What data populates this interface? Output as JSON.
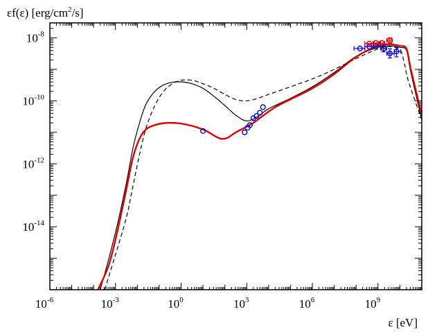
{
  "chart_data": {
    "type": "line",
    "ylabel_parts": [
      "εf(ε) [erg/cm",
      "2",
      "/s]"
    ],
    "xlabel": "ε [eV]",
    "x_scale": "log",
    "y_scale": "log",
    "xlim": [
      1e-06,
      100000000000.0
    ],
    "ylim": [
      1e-16,
      3e-08
    ],
    "x_ticks": [
      {
        "value": 1e-06,
        "base": "10",
        "exp": "-6"
      },
      {
        "value": 0.001,
        "base": "10",
        "exp": "-3"
      },
      {
        "value": 1,
        "base": "10",
        "exp": "0"
      },
      {
        "value": 1000.0,
        "base": "10",
        "exp": "3"
      },
      {
        "value": 1000000.0,
        "base": "10",
        "exp": "6"
      },
      {
        "value": 1000000000.0,
        "base": "10",
        "exp": "9"
      }
    ],
    "y_ticks": [
      {
        "value": 1e-08,
        "base": "10",
        "exp": "-8"
      },
      {
        "value": 1e-10,
        "base": "10",
        "exp": "-10"
      },
      {
        "value": 1e-12,
        "base": "10",
        "exp": "-12"
      },
      {
        "value": 1e-14,
        "base": "10",
        "exp": "-14"
      }
    ],
    "series": [
      {
        "style": "red-thick",
        "color": "#dd0000",
        "points": [
          [
            0.000158,
            1e-16
          ],
          [
            0.000501,
            6.3e-16
          ],
          [
            0.00126,
            8e-15
          ],
          [
            0.00316,
            1.6e-13
          ],
          [
            0.00631,
            1.6e-12
          ],
          [
            0.0126,
            6.3e-12
          ],
          [
            0.0251,
            1.26e-11
          ],
          [
            0.0631,
            1.7e-11
          ],
          [
            0.158,
            1.95e-11
          ],
          [
            0.398,
            2e-11
          ],
          [
            1,
            1.9e-11
          ],
          [
            3.16,
            1.6e-11
          ],
          [
            12.6,
            1.15e-11
          ],
          [
            31.6,
            7.9e-12
          ],
          [
            63.1,
            6.3e-12
          ],
          [
            126,
            6.6e-12
          ],
          [
            316,
            1e-11
          ],
          [
            794,
            1.4e-11
          ],
          [
            2000,
            2e-11
          ],
          [
            6310,
            3.6e-11
          ],
          [
            20000,
            6.3e-11
          ],
          [
            100000,
            1.12e-10
          ],
          [
            1000000,
            2.5e-10
          ],
          [
            10000000,
            7.1e-10
          ],
          [
            100000000,
            2.5e-09
          ],
          [
            1000000000.0,
            5.6e-09
          ],
          [
            3160000000.0,
            6.3e-09
          ],
          [
            10000000000.0,
            5.6e-09
          ],
          [
            20000000000.0,
            4.5e-09
          ],
          [
            31600000000.0,
            1e-09
          ],
          [
            100000000000.0,
            3.5e-11
          ]
        ]
      },
      {
        "style": "black-solid",
        "color": "#000000",
        "points": [
          [
            0.0002,
            1e-16
          ],
          [
            0.000501,
            1e-15
          ],
          [
            0.00126,
            1.3e-14
          ],
          [
            0.00316,
            2.5e-13
          ],
          [
            0.00631,
            3.2e-12
          ],
          [
            0.0126,
            2e-11
          ],
          [
            0.0251,
            8e-11
          ],
          [
            0.0631,
            2e-10
          ],
          [
            0.158,
            3.2e-10
          ],
          [
            0.398,
            3.9e-10
          ],
          [
            1,
            4e-10
          ],
          [
            3.16,
            3.5e-10
          ],
          [
            10,
            2.5e-10
          ],
          [
            31.6,
            1.4e-10
          ],
          [
            100,
            7.1e-11
          ],
          [
            316,
            3.5e-11
          ],
          [
            1000,
            2.3e-11
          ],
          [
            3160,
            3.2e-11
          ],
          [
            10000,
            5.6e-11
          ],
          [
            100000,
            1.2e-10
          ],
          [
            1000000,
            2.8e-10
          ],
          [
            10000000,
            8e-10
          ],
          [
            100000000,
            2.6e-09
          ],
          [
            1000000000.0,
            5e-09
          ],
          [
            3160000000.0,
            5.6e-09
          ],
          [
            10000000000.0,
            5e-09
          ],
          [
            20000000000.0,
            4e-09
          ],
          [
            31600000000.0,
            8e-10
          ],
          [
            100000000000.0,
            2.5e-11
          ]
        ]
      },
      {
        "style": "black-dashed",
        "color": "#000000",
        "points": [
          [
            0.00032,
            1e-16
          ],
          [
            0.001,
            1.3e-15
          ],
          [
            0.00316,
            2e-14
          ],
          [
            0.00631,
            2e-13
          ],
          [
            0.0126,
            2e-12
          ],
          [
            0.0251,
            1.4e-11
          ],
          [
            0.0631,
            7.1e-11
          ],
          [
            0.158,
            2e-10
          ],
          [
            0.398,
            3.5e-10
          ],
          [
            1,
            4.5e-10
          ],
          [
            3.16,
            4.5e-10
          ],
          [
            10,
            3.5e-10
          ],
          [
            31.6,
            2.5e-10
          ],
          [
            100,
            1.6e-10
          ],
          [
            316,
            1.1e-10
          ],
          [
            1000,
            1e-10
          ],
          [
            3160,
            1.2e-10
          ],
          [
            10000,
            1.6e-10
          ],
          [
            100000,
            2.8e-10
          ],
          [
            1000000,
            5e-10
          ],
          [
            10000000,
            1e-09
          ],
          [
            100000000,
            2.2e-09
          ],
          [
            1000000000.0,
            4.5e-09
          ],
          [
            3160000000.0,
            5.3e-09
          ],
          [
            10000000000.0,
            4.2e-09
          ],
          [
            15800000000.0,
            1.6e-09
          ],
          [
            25100000000.0,
            4e-10
          ],
          [
            100000000000.0,
            2.5e-11
          ]
        ]
      }
    ],
    "observations": {
      "blue": {
        "color": "#0000cc",
        "points": [
          {
            "x": 10,
            "y": 1.1e-11
          },
          {
            "x": 800,
            "y": 1e-11
          },
          {
            "x": 1100,
            "y": 1.4e-11
          },
          {
            "x": 1400,
            "y": 1.7e-11
          },
          {
            "x": 2000,
            "y": 2.8e-11
          },
          {
            "x": 2800,
            "y": 3.3e-11
          },
          {
            "x": 4000,
            "y": 4.2e-11
          },
          {
            "x": 5500,
            "y": 6.3e-11
          },
          {
            "x": 150000000,
            "y": 4.6e-09,
            "xerr": [
              80000000,
              250000000
            ]
          },
          {
            "x": 400000000,
            "y": 5.3e-09,
            "xerr": [
              250000000,
              600000000
            ]
          },
          {
            "x": 800000000,
            "y": 5.5e-09,
            "xerr": [
              600000000,
              1300000000
            ]
          },
          {
            "x": 1800000000,
            "y": 4.6e-09,
            "xerr": [
              1300000000,
              2500000000
            ],
            "yerr": [
              3.6e-09,
              5.8e-09
            ]
          },
          {
            "x": 3500000000,
            "y": 3.2e-09,
            "xerr": [
              2500000000,
              5500000000
            ],
            "yerr": [
              2.3e-09,
              4.5e-09
            ]
          },
          {
            "x": 7000000000,
            "y": 3.7e-09,
            "xerr": [
              5500000000,
              11000000000
            ],
            "yerr": [
              2.5e-09,
              5e-09
            ]
          }
        ]
      },
      "red": {
        "color": "#dd0000",
        "points": [
          {
            "x": 400000000,
            "y": 6.6e-09,
            "xerr": [
              250000000,
              600000000
            ]
          },
          {
            "x": 800000000,
            "y": 6.9e-09,
            "xerr": [
              600000000,
              1300000000
            ]
          },
          {
            "x": 1500000000,
            "y": 6.9e-09,
            "xerr": [
              1100000000,
              2000000000
            ]
          },
          {
            "x": 3500000000,
            "y": 8.4e-09,
            "xerr": [
              2500000000,
              4500000000
            ],
            "yerr": [
              6.8e-09,
              1e-08
            ]
          }
        ]
      }
    },
    "grid": false,
    "legend": "none"
  }
}
